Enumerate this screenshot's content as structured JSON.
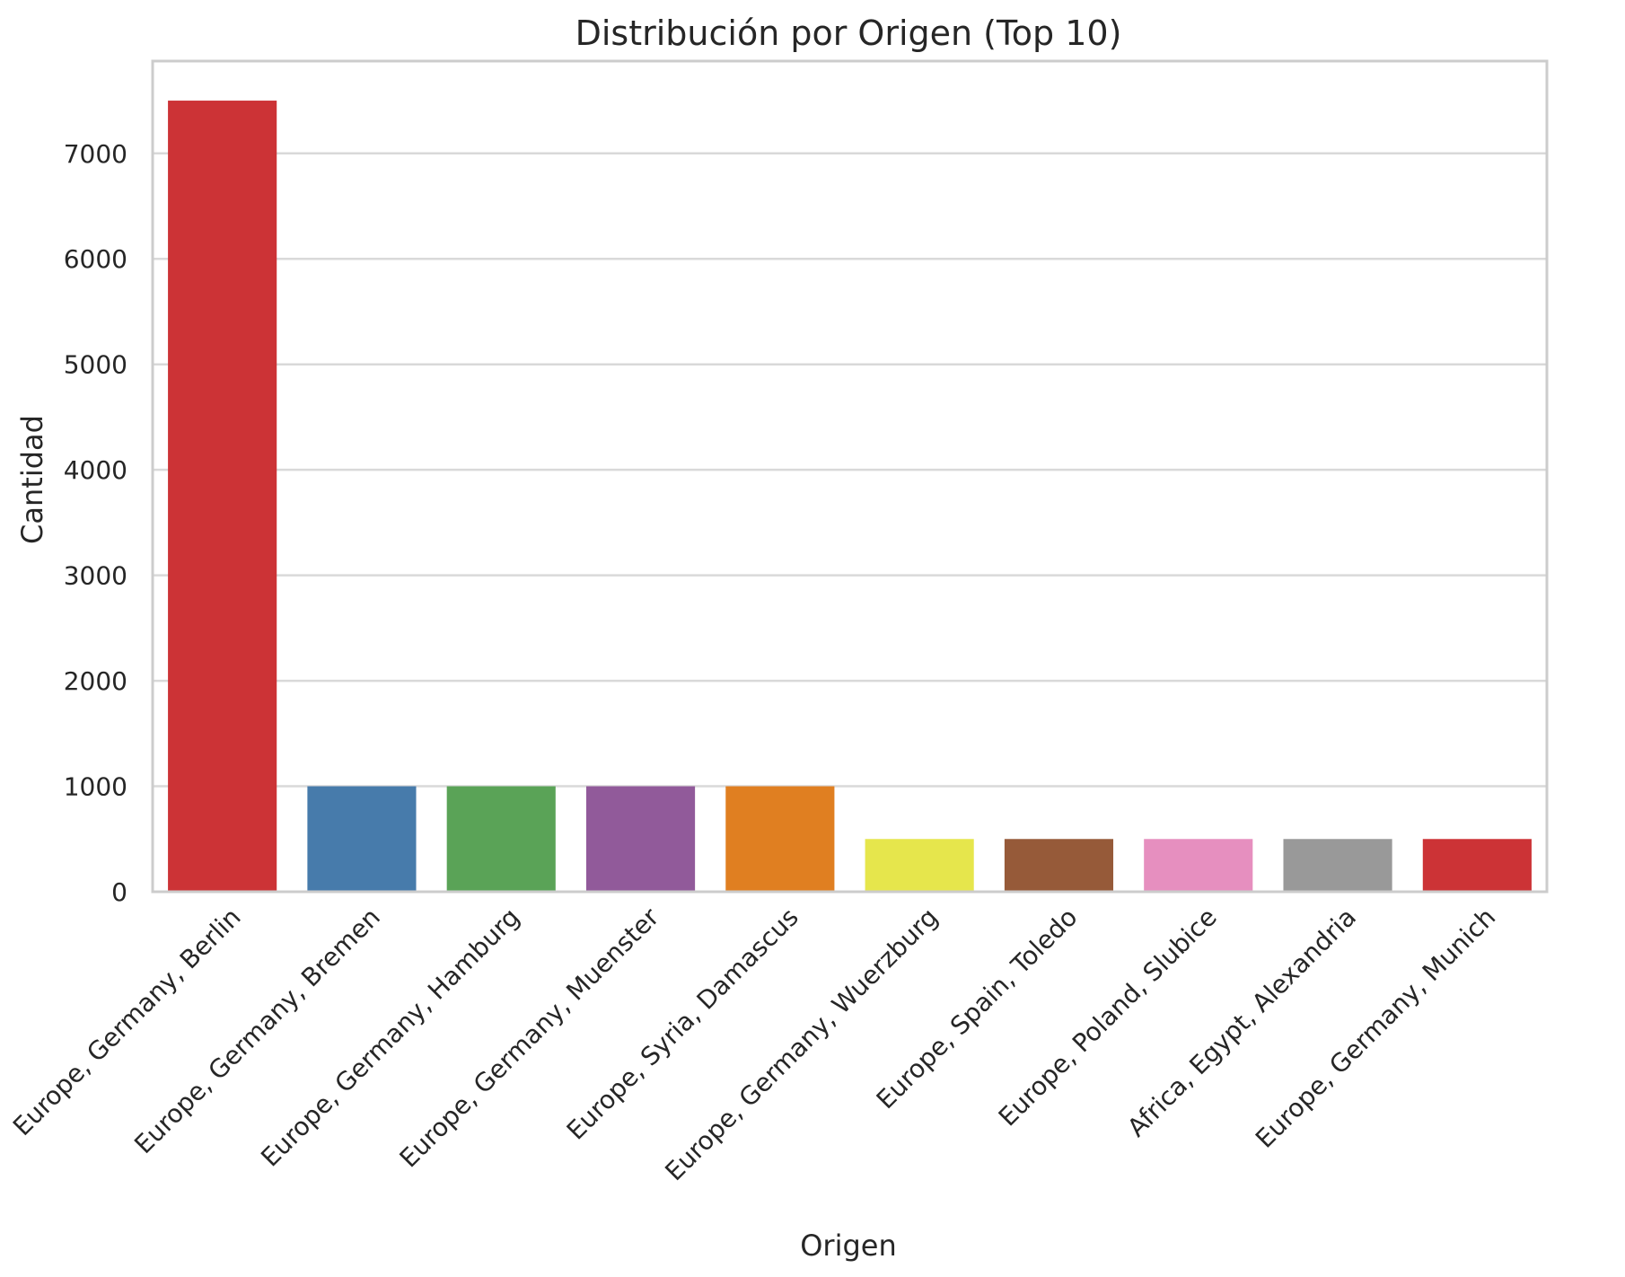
{
  "chart_data": {
    "type": "bar",
    "title": "Distribución por Origen (Top 10)",
    "xlabel": "Origen",
    "ylabel": "Cantidad",
    "ylim": [
      0,
      7875
    ],
    "yticks": [
      0,
      1000,
      2000,
      3000,
      4000,
      5000,
      6000,
      7000
    ],
    "grid": "horizontal",
    "categories": [
      "Europe, Germany, Berlin",
      "Europe, Germany, Bremen",
      "Europe, Germany, Hamburg",
      "Europe, Germany, Muenster",
      "Europe, Syria, Damascus",
      "Europe, Germany, Wuerzburg",
      "Europe, Spain, Toledo",
      "Europe, Poland, Slubice",
      "Africa, Egypt, Alexandria",
      "Europe, Germany, Munich"
    ],
    "values": [
      7500,
      1000,
      1000,
      1000,
      1000,
      500,
      500,
      500,
      500,
      500
    ],
    "colors": [
      "#cc3336",
      "#477bab",
      "#5aa357",
      "#915a9a",
      "#e07f21",
      "#e6e64c",
      "#965a39",
      "#e68fbf",
      "#999999",
      "#cc3336"
    ]
  }
}
